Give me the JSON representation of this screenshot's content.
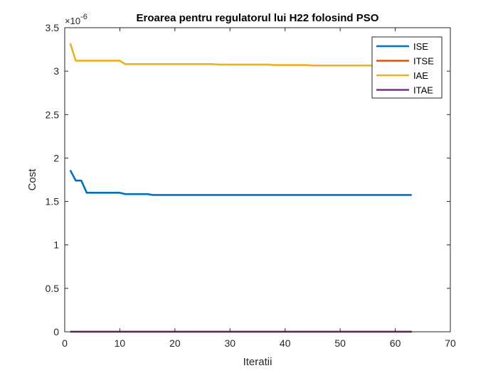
{
  "chart_data": {
    "type": "line",
    "title": "Eroarea pentru regulatorul lui H22 folosind PSO",
    "xlabel": "Iteratii",
    "ylabel": "Cost",
    "xlim": [
      0,
      70
    ],
    "ylim": [
      0,
      3.5
    ],
    "xticks": [
      0,
      10,
      20,
      30,
      40,
      50,
      60,
      70
    ],
    "yticks": [
      0,
      0.5,
      1,
      1.5,
      2,
      2.5,
      3,
      3.5
    ],
    "xtick_labels": [
      "0",
      "10",
      "20",
      "30",
      "40",
      "50",
      "60",
      "70"
    ],
    "ytick_labels": [
      "0",
      "0.5",
      "1",
      "1.5",
      "2",
      "2.5",
      "3",
      "3.5"
    ],
    "y_exponent_label": "×10",
    "y_exponent_power": "-6",
    "legend_position": "top-right",
    "grid": false,
    "series": [
      {
        "name": "ISE",
        "color": "#0072BD",
        "points": [
          [
            1,
            1.86
          ],
          [
            2,
            1.74
          ],
          [
            3,
            1.74
          ],
          [
            4,
            1.6
          ],
          [
            5,
            1.6
          ],
          [
            10,
            1.6
          ],
          [
            11,
            1.585
          ],
          [
            15,
            1.585
          ],
          [
            16,
            1.575
          ],
          [
            63,
            1.575
          ]
        ]
      },
      {
        "name": "ITSE",
        "color": "#D95319",
        "points": [
          [
            1,
            0.001
          ],
          [
            63,
            0.001
          ]
        ]
      },
      {
        "name": "IAE",
        "color": "#EDB120",
        "points": [
          [
            1,
            3.32
          ],
          [
            2,
            3.12
          ],
          [
            10,
            3.12
          ],
          [
            11,
            3.08
          ],
          [
            27,
            3.08
          ],
          [
            28,
            3.075
          ],
          [
            37,
            3.075
          ],
          [
            38,
            3.07
          ],
          [
            44,
            3.07
          ],
          [
            45,
            3.065
          ],
          [
            63,
            3.065
          ]
        ]
      },
      {
        "name": "ITAE",
        "color": "#7E2F8E",
        "points": [
          [
            1,
            0.001
          ],
          [
            63,
            0.001
          ]
        ]
      }
    ]
  }
}
